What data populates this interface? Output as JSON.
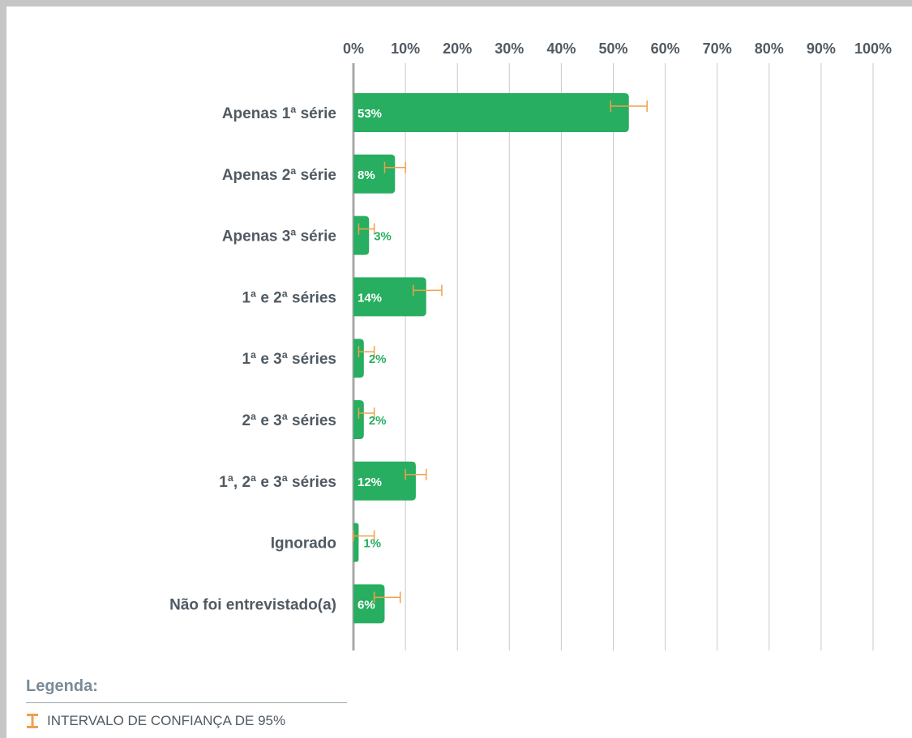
{
  "colors": {
    "bar": "#27ae60",
    "bar_label_inside": "#ffffff",
    "bar_label_outside": "#27ae60",
    "error_bar": "#f0a04b",
    "grid": "#c9c9c9",
    "axis": "#a9a9a9",
    "text": "#505a63"
  },
  "legend": {
    "title": "Legenda:",
    "items": [
      {
        "icon": "error-bar-icon",
        "label": "INTERVALO DE CONFIANÇA DE 95%"
      }
    ]
  },
  "chart_data": {
    "type": "bar",
    "orientation": "horizontal",
    "xlim": [
      0,
      100
    ],
    "ticks": [
      "0%",
      "10%",
      "20%",
      "30%",
      "40%",
      "50%",
      "60%",
      "70%",
      "80%",
      "90%",
      "100%"
    ],
    "tick_values": [
      0,
      10,
      20,
      30,
      40,
      50,
      60,
      70,
      80,
      90,
      100
    ],
    "axis_position": "top",
    "grid": true,
    "categories": [
      "Apenas 1ª série",
      "Apenas 2ª série",
      "Apenas 3ª série",
      "1ª e 2ª séries",
      "1ª e 3ª séries",
      "2ª e 3ª séries",
      "1ª, 2ª e 3ª séries",
      "Ignorado",
      "Não foi entrevistado(a)"
    ],
    "values": [
      53,
      8,
      3,
      14,
      2,
      2,
      12,
      1,
      6
    ],
    "labels": [
      "53%",
      "8%",
      "3%",
      "14%",
      "2%",
      "2%",
      "12%",
      "1%",
      "6%"
    ],
    "ci_low": [
      49.5,
      6,
      1,
      11.5,
      1,
      1,
      10,
      0,
      4
    ],
    "ci_high": [
      56.5,
      10,
      4,
      17,
      4,
      4,
      14,
      4,
      9
    ]
  }
}
